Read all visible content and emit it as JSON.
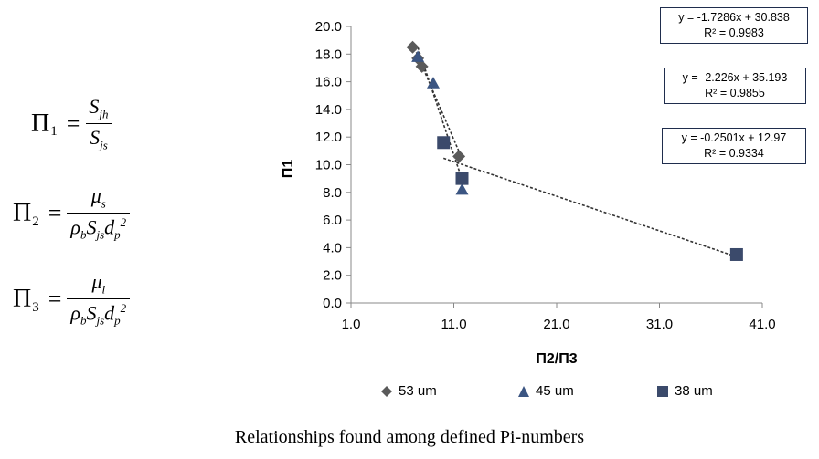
{
  "equations": [
    {
      "lhs_sub": "1",
      "num_main": "S",
      "num_sub": "jh",
      "den_main": "S",
      "den_sub": "js"
    },
    {
      "lhs_sub": "2",
      "num_main": "μ",
      "num_sub": "s",
      "den_main": "ρ",
      "den_sub1": "b",
      "den_s": "S",
      "den_sub2": "js",
      "den_d": "d",
      "den_sub3": "p",
      "den_sup": "2"
    },
    {
      "lhs_sub": "3",
      "num_main": "μ",
      "num_sub": "l",
      "den_main": "ρ",
      "den_sub1": "b",
      "den_s": "S",
      "den_sub2": "js",
      "den_d": "d",
      "den_sub3": "p",
      "den_sup": "2"
    }
  ],
  "pi_symbol": "Π",
  "caption": "Relationships found among defined Pi-numbers",
  "trend_boxes": [
    {
      "eq": "y = -1.7286x + 30.838",
      "r2": "R² = 0.9983"
    },
    {
      "eq": "y = -2.226x + 35.193",
      "r2": "R² = 0.9855"
    },
    {
      "eq": "y = -0.2501x + 12.97",
      "r2": "R² = 0.9334"
    }
  ],
  "chart_data": {
    "type": "scatter",
    "xlabel": "Π2/Π3",
    "ylabel": "Π1",
    "xlim": [
      1.0,
      41.0
    ],
    "ylim": [
      0.0,
      20.0
    ],
    "x_ticks": [
      "1.0",
      "11.0",
      "21.0",
      "31.0",
      "41.0"
    ],
    "y_ticks": [
      "0.0",
      "2.0",
      "4.0",
      "6.0",
      "8.0",
      "10.0",
      "12.0",
      "14.0",
      "16.0",
      "18.0",
      "20.0"
    ],
    "grid": false,
    "legend_position": "bottom",
    "series": [
      {
        "name": "53 um",
        "marker": "diamond",
        "color": "#5a5a5a",
        "x": [
          7.0,
          7.5,
          7.9,
          11.5
        ],
        "y": [
          18.5,
          17.7,
          17.1,
          10.6
        ],
        "trend": {
          "slope": -1.7286,
          "intercept": 30.838,
          "x_range": [
            7.0,
            11.5
          ]
        }
      },
      {
        "name": "45 um",
        "marker": "triangle",
        "color": "#3b5582",
        "x": [
          7.5,
          9.0,
          11.8
        ],
        "y": [
          17.8,
          15.9,
          8.2
        ],
        "trend": {
          "slope": -2.226,
          "intercept": 35.193,
          "x_range": [
            7.5,
            11.8
          ]
        }
      },
      {
        "name": "38 um",
        "marker": "square",
        "color": "#3b4a6b",
        "x": [
          10.0,
          11.8,
          38.5
        ],
        "y": [
          11.6,
          9.0,
          3.5
        ],
        "trend": {
          "slope": -0.2501,
          "intercept": 12.97,
          "x_range": [
            10.0,
            38.5
          ]
        }
      }
    ]
  }
}
